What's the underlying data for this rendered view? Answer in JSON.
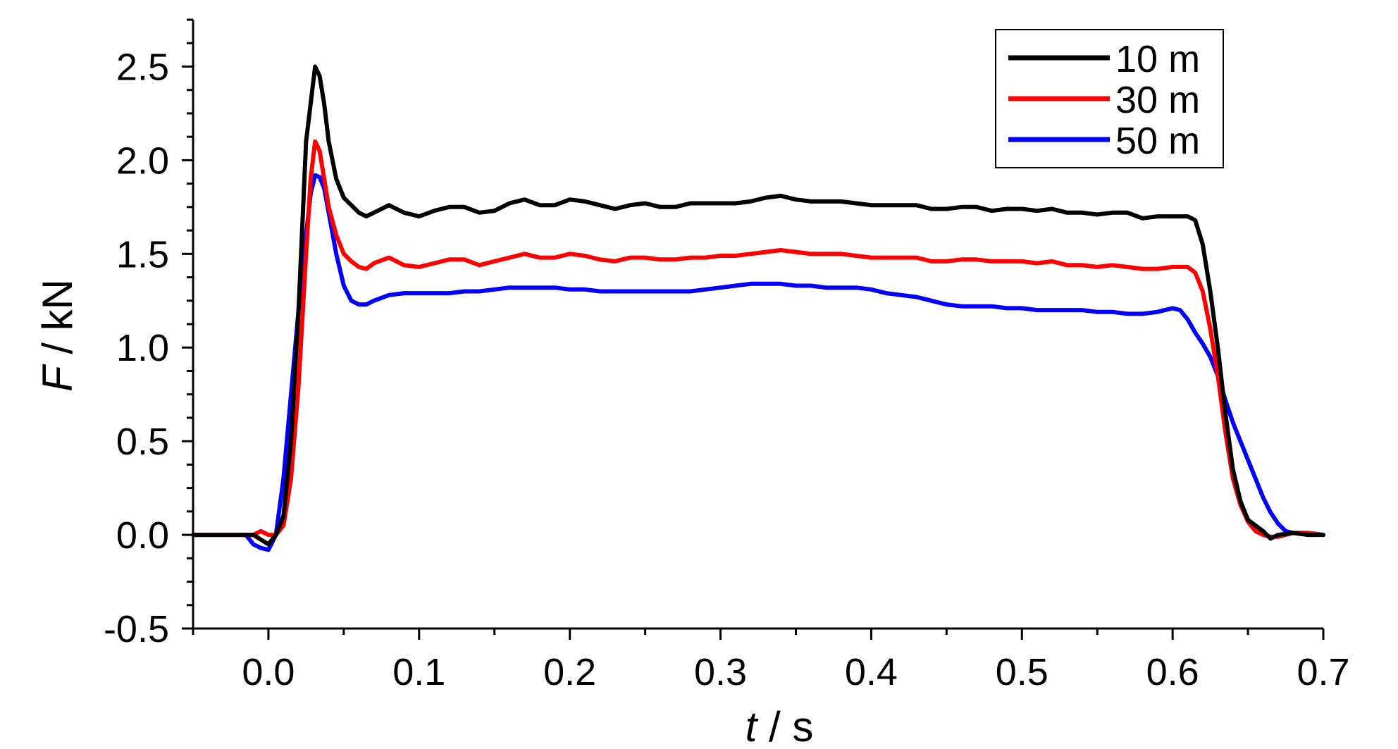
{
  "chart_data": {
    "type": "line",
    "title": "",
    "xlabel": {
      "var": "t",
      "unit": " / s"
    },
    "ylabel": {
      "var": "F",
      "unit": " / kN"
    },
    "xlim": [
      -0.05,
      0.7
    ],
    "ylim": [
      -0.5,
      2.75
    ],
    "xticks": [
      0.0,
      0.1,
      0.2,
      0.3,
      0.4,
      0.5,
      0.6,
      0.7
    ],
    "xtick_labels": [
      "0.0",
      "0.1",
      "0.2",
      "0.3",
      "0.4",
      "0.5",
      "0.6",
      "0.7"
    ],
    "yticks": [
      -0.5,
      0.0,
      0.5,
      1.0,
      1.5,
      2.0,
      2.5
    ],
    "ytick_labels": [
      "-0.5",
      "0.0",
      "0.5",
      "1.0",
      "1.5",
      "2.0",
      "2.5"
    ],
    "grid": false,
    "legend": "top-right",
    "series": [
      {
        "name": "10 m",
        "color": "#000000",
        "points": [
          [
            -0.05,
            0.0
          ],
          [
            -0.02,
            0.0
          ],
          [
            -0.01,
            0.0
          ],
          [
            0.0,
            -0.05
          ],
          [
            0.005,
            0.0
          ],
          [
            0.01,
            0.1
          ],
          [
            0.015,
            0.5
          ],
          [
            0.02,
            1.2
          ],
          [
            0.025,
            2.1
          ],
          [
            0.028,
            2.3
          ],
          [
            0.031,
            2.5
          ],
          [
            0.034,
            2.45
          ],
          [
            0.037,
            2.3
          ],
          [
            0.04,
            2.1
          ],
          [
            0.045,
            1.9
          ],
          [
            0.05,
            1.8
          ],
          [
            0.06,
            1.72
          ],
          [
            0.065,
            1.7
          ],
          [
            0.07,
            1.72
          ],
          [
            0.08,
            1.76
          ],
          [
            0.09,
            1.72
          ],
          [
            0.1,
            1.7
          ],
          [
            0.11,
            1.73
          ],
          [
            0.12,
            1.75
          ],
          [
            0.13,
            1.75
          ],
          [
            0.14,
            1.72
          ],
          [
            0.15,
            1.73
          ],
          [
            0.16,
            1.77
          ],
          [
            0.17,
            1.79
          ],
          [
            0.18,
            1.76
          ],
          [
            0.19,
            1.76
          ],
          [
            0.2,
            1.79
          ],
          [
            0.21,
            1.78
          ],
          [
            0.22,
            1.76
          ],
          [
            0.23,
            1.74
          ],
          [
            0.24,
            1.76
          ],
          [
            0.25,
            1.77
          ],
          [
            0.26,
            1.75
          ],
          [
            0.27,
            1.75
          ],
          [
            0.28,
            1.77
          ],
          [
            0.29,
            1.77
          ],
          [
            0.3,
            1.77
          ],
          [
            0.31,
            1.77
          ],
          [
            0.32,
            1.78
          ],
          [
            0.33,
            1.8
          ],
          [
            0.34,
            1.81
          ],
          [
            0.35,
            1.79
          ],
          [
            0.36,
            1.78
          ],
          [
            0.37,
            1.78
          ],
          [
            0.38,
            1.78
          ],
          [
            0.39,
            1.77
          ],
          [
            0.4,
            1.76
          ],
          [
            0.41,
            1.76
          ],
          [
            0.42,
            1.76
          ],
          [
            0.43,
            1.76
          ],
          [
            0.44,
            1.74
          ],
          [
            0.45,
            1.74
          ],
          [
            0.46,
            1.75
          ],
          [
            0.47,
            1.75
          ],
          [
            0.48,
            1.73
          ],
          [
            0.49,
            1.74
          ],
          [
            0.5,
            1.74
          ],
          [
            0.51,
            1.73
          ],
          [
            0.52,
            1.74
          ],
          [
            0.53,
            1.72
          ],
          [
            0.54,
            1.72
          ],
          [
            0.55,
            1.71
          ],
          [
            0.56,
            1.72
          ],
          [
            0.57,
            1.72
          ],
          [
            0.58,
            1.69
          ],
          [
            0.59,
            1.7
          ],
          [
            0.6,
            1.7
          ],
          [
            0.61,
            1.7
          ],
          [
            0.615,
            1.68
          ],
          [
            0.62,
            1.55
          ],
          [
            0.625,
            1.3
          ],
          [
            0.63,
            1.0
          ],
          [
            0.635,
            0.65
          ],
          [
            0.64,
            0.35
          ],
          [
            0.645,
            0.18
          ],
          [
            0.65,
            0.08
          ],
          [
            0.66,
            0.02
          ],
          [
            0.665,
            -0.02
          ],
          [
            0.67,
            0.0
          ],
          [
            0.68,
            0.01
          ],
          [
            0.69,
            0.0
          ],
          [
            0.7,
            0.0
          ]
        ]
      },
      {
        "name": "30 m",
        "color": "#ff0000",
        "points": [
          [
            -0.05,
            0.0
          ],
          [
            -0.02,
            0.0
          ],
          [
            -0.01,
            0.0
          ],
          [
            -0.005,
            0.02
          ],
          [
            0.0,
            0.0
          ],
          [
            0.005,
            0.0
          ],
          [
            0.01,
            0.05
          ],
          [
            0.015,
            0.3
          ],
          [
            0.02,
            0.8
          ],
          [
            0.025,
            1.5
          ],
          [
            0.028,
            1.9
          ],
          [
            0.031,
            2.1
          ],
          [
            0.034,
            2.05
          ],
          [
            0.037,
            1.9
          ],
          [
            0.04,
            1.75
          ],
          [
            0.045,
            1.6
          ],
          [
            0.05,
            1.5
          ],
          [
            0.055,
            1.46
          ],
          [
            0.06,
            1.43
          ],
          [
            0.065,
            1.42
          ],
          [
            0.07,
            1.45
          ],
          [
            0.08,
            1.48
          ],
          [
            0.09,
            1.44
          ],
          [
            0.1,
            1.43
          ],
          [
            0.11,
            1.45
          ],
          [
            0.12,
            1.47
          ],
          [
            0.13,
            1.47
          ],
          [
            0.14,
            1.44
          ],
          [
            0.15,
            1.46
          ],
          [
            0.16,
            1.48
          ],
          [
            0.17,
            1.5
          ],
          [
            0.18,
            1.48
          ],
          [
            0.19,
            1.48
          ],
          [
            0.2,
            1.5
          ],
          [
            0.21,
            1.49
          ],
          [
            0.22,
            1.47
          ],
          [
            0.23,
            1.46
          ],
          [
            0.24,
            1.48
          ],
          [
            0.25,
            1.48
          ],
          [
            0.26,
            1.47
          ],
          [
            0.27,
            1.47
          ],
          [
            0.28,
            1.48
          ],
          [
            0.29,
            1.48
          ],
          [
            0.3,
            1.49
          ],
          [
            0.31,
            1.49
          ],
          [
            0.32,
            1.5
          ],
          [
            0.33,
            1.51
          ],
          [
            0.34,
            1.52
          ],
          [
            0.35,
            1.51
          ],
          [
            0.36,
            1.5
          ],
          [
            0.37,
            1.5
          ],
          [
            0.38,
            1.5
          ],
          [
            0.39,
            1.49
          ],
          [
            0.4,
            1.48
          ],
          [
            0.41,
            1.48
          ],
          [
            0.42,
            1.48
          ],
          [
            0.43,
            1.48
          ],
          [
            0.44,
            1.46
          ],
          [
            0.45,
            1.46
          ],
          [
            0.46,
            1.47
          ],
          [
            0.47,
            1.47
          ],
          [
            0.48,
            1.46
          ],
          [
            0.49,
            1.46
          ],
          [
            0.5,
            1.46
          ],
          [
            0.51,
            1.45
          ],
          [
            0.52,
            1.46
          ],
          [
            0.53,
            1.44
          ],
          [
            0.54,
            1.44
          ],
          [
            0.55,
            1.43
          ],
          [
            0.56,
            1.44
          ],
          [
            0.57,
            1.43
          ],
          [
            0.58,
            1.42
          ],
          [
            0.59,
            1.42
          ],
          [
            0.6,
            1.43
          ],
          [
            0.61,
            1.43
          ],
          [
            0.615,
            1.4
          ],
          [
            0.62,
            1.3
          ],
          [
            0.625,
            1.1
          ],
          [
            0.63,
            0.85
          ],
          [
            0.635,
            0.55
          ],
          [
            0.64,
            0.3
          ],
          [
            0.645,
            0.16
          ],
          [
            0.65,
            0.07
          ],
          [
            0.655,
            0.02
          ],
          [
            0.66,
            0.0
          ],
          [
            0.665,
            -0.01
          ],
          [
            0.67,
            -0.01
          ],
          [
            0.68,
            0.01
          ],
          [
            0.69,
            0.01
          ],
          [
            0.7,
            0.0
          ]
        ]
      },
      {
        "name": "50 m",
        "color": "#0000ff",
        "points": [
          [
            -0.05,
            0.0
          ],
          [
            -0.02,
            0.0
          ],
          [
            -0.015,
            0.0
          ],
          [
            -0.01,
            -0.05
          ],
          [
            -0.005,
            -0.07
          ],
          [
            0.0,
            -0.08
          ],
          [
            0.005,
            0.0
          ],
          [
            0.01,
            0.3
          ],
          [
            0.015,
            0.75
          ],
          [
            0.02,
            1.2
          ],
          [
            0.025,
            1.6
          ],
          [
            0.028,
            1.82
          ],
          [
            0.031,
            1.92
          ],
          [
            0.034,
            1.91
          ],
          [
            0.037,
            1.85
          ],
          [
            0.04,
            1.72
          ],
          [
            0.045,
            1.5
          ],
          [
            0.05,
            1.33
          ],
          [
            0.055,
            1.25
          ],
          [
            0.06,
            1.23
          ],
          [
            0.065,
            1.23
          ],
          [
            0.07,
            1.25
          ],
          [
            0.08,
            1.28
          ],
          [
            0.09,
            1.29
          ],
          [
            0.1,
            1.29
          ],
          [
            0.11,
            1.29
          ],
          [
            0.12,
            1.29
          ],
          [
            0.13,
            1.3
          ],
          [
            0.14,
            1.3
          ],
          [
            0.15,
            1.31
          ],
          [
            0.16,
            1.32
          ],
          [
            0.17,
            1.32
          ],
          [
            0.18,
            1.32
          ],
          [
            0.19,
            1.32
          ],
          [
            0.2,
            1.31
          ],
          [
            0.21,
            1.31
          ],
          [
            0.22,
            1.3
          ],
          [
            0.23,
            1.3
          ],
          [
            0.24,
            1.3
          ],
          [
            0.25,
            1.3
          ],
          [
            0.26,
            1.3
          ],
          [
            0.27,
            1.3
          ],
          [
            0.28,
            1.3
          ],
          [
            0.29,
            1.31
          ],
          [
            0.3,
            1.32
          ],
          [
            0.31,
            1.33
          ],
          [
            0.32,
            1.34
          ],
          [
            0.33,
            1.34
          ],
          [
            0.34,
            1.34
          ],
          [
            0.35,
            1.33
          ],
          [
            0.36,
            1.33
          ],
          [
            0.37,
            1.32
          ],
          [
            0.38,
            1.32
          ],
          [
            0.39,
            1.32
          ],
          [
            0.4,
            1.31
          ],
          [
            0.41,
            1.29
          ],
          [
            0.42,
            1.28
          ],
          [
            0.43,
            1.27
          ],
          [
            0.44,
            1.25
          ],
          [
            0.45,
            1.23
          ],
          [
            0.46,
            1.22
          ],
          [
            0.47,
            1.22
          ],
          [
            0.48,
            1.22
          ],
          [
            0.49,
            1.21
          ],
          [
            0.5,
            1.21
          ],
          [
            0.51,
            1.2
          ],
          [
            0.52,
            1.2
          ],
          [
            0.53,
            1.2
          ],
          [
            0.54,
            1.2
          ],
          [
            0.55,
            1.19
          ],
          [
            0.56,
            1.19
          ],
          [
            0.57,
            1.18
          ],
          [
            0.58,
            1.18
          ],
          [
            0.59,
            1.19
          ],
          [
            0.6,
            1.21
          ],
          [
            0.605,
            1.2
          ],
          [
            0.61,
            1.15
          ],
          [
            0.615,
            1.08
          ],
          [
            0.62,
            1.02
          ],
          [
            0.625,
            0.95
          ],
          [
            0.63,
            0.85
          ],
          [
            0.635,
            0.72
          ],
          [
            0.64,
            0.6
          ],
          [
            0.645,
            0.5
          ],
          [
            0.65,
            0.4
          ],
          [
            0.655,
            0.3
          ],
          [
            0.66,
            0.2
          ],
          [
            0.665,
            0.12
          ],
          [
            0.67,
            0.06
          ],
          [
            0.675,
            0.02
          ],
          [
            0.68,
            0.01
          ],
          [
            0.69,
            0.01
          ],
          [
            0.7,
            0.0
          ]
        ]
      }
    ]
  }
}
